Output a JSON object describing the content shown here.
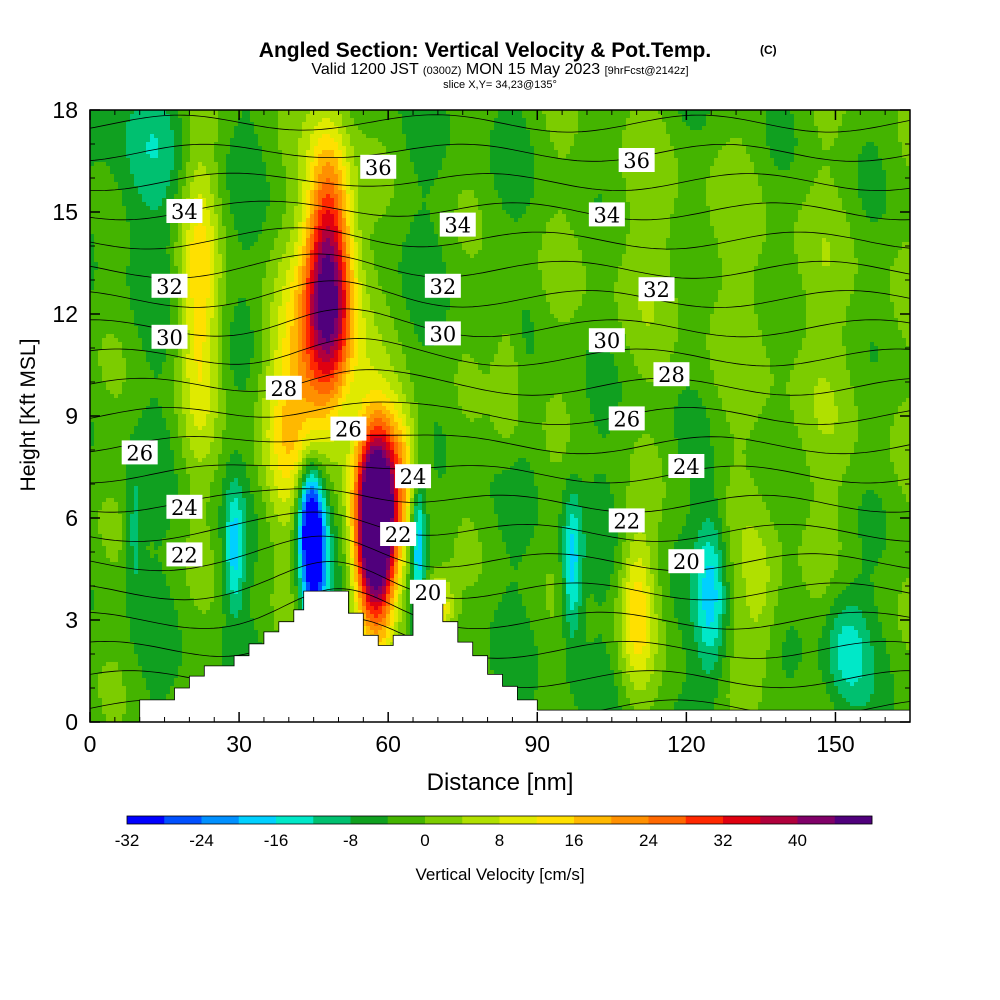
{
  "chart_data": {
    "type": "contour",
    "title": {
      "main": "Angled Section: Vertical Velocity & Pot.Temp.",
      "unit": "(C)",
      "valid_prefix": "Valid 1200 JST",
      "valid_zulu": "(0300Z)",
      "valid_date": "MON 15 May 2023",
      "valid_fcst": "[9hrFcst@2142z]",
      "slice": "slice X,Y= 34,23@135°"
    },
    "xlabel": "Distance [nm]",
    "ylabel": "Height [Kft MSL]",
    "xlim": [
      0,
      165
    ],
    "ylim": [
      0,
      18
    ],
    "x_ticks": [
      "0",
      "30",
      "60",
      "90",
      "120",
      "150"
    ],
    "y_ticks": [
      "0",
      "3",
      "6",
      "9",
      "12",
      "15",
      "18"
    ],
    "x_tick_values": [
      0,
      30,
      60,
      90,
      120,
      150
    ],
    "y_tick_values": [
      0,
      3,
      6,
      9,
      12,
      15,
      18
    ],
    "colorbar": {
      "label": "Vertical Velocity [cm/s]",
      "levels": [
        -32,
        -28,
        -24,
        -20,
        -16,
        -12,
        -8,
        -4,
        0,
        4,
        8,
        12,
        16,
        20,
        24,
        28,
        32,
        36,
        40,
        44
      ],
      "tick_labels": [
        "-32",
        "-24",
        "-16",
        "-8",
        "0",
        "8",
        "16",
        "24",
        "32",
        "40"
      ],
      "colors": [
        "#0000ff",
        "#0050ff",
        "#0090ff",
        "#00d0ff",
        "#00e8c8",
        "#00c070",
        "#10a020",
        "#44b400",
        "#7ccc00",
        "#b0e000",
        "#e0ea00",
        "#ffe000",
        "#ffb800",
        "#ff9000",
        "#ff6800",
        "#ff2800",
        "#e00010",
        "#b0003c",
        "#800068",
        "#50007c"
      ]
    },
    "theta_contour_labels": [
      {
        "text": "36",
        "x": 58,
        "y": 16.3
      },
      {
        "text": "36",
        "x": 110,
        "y": 16.5
      },
      {
        "text": "34",
        "x": 19,
        "y": 15.0
      },
      {
        "text": "34",
        "x": 74,
        "y": 14.6
      },
      {
        "text": "34",
        "x": 104,
        "y": 14.9
      },
      {
        "text": "32",
        "x": 16,
        "y": 12.8
      },
      {
        "text": "32",
        "x": 71,
        "y": 12.8
      },
      {
        "text": "32",
        "x": 114,
        "y": 12.7
      },
      {
        "text": "30",
        "x": 16,
        "y": 11.3
      },
      {
        "text": "30",
        "x": 71,
        "y": 11.4
      },
      {
        "text": "30",
        "x": 104,
        "y": 11.2
      },
      {
        "text": "28",
        "x": 39,
        "y": 9.8
      },
      {
        "text": "28",
        "x": 117,
        "y": 10.2
      },
      {
        "text": "26",
        "x": 52,
        "y": 8.6
      },
      {
        "text": "26",
        "x": 10,
        "y": 7.9
      },
      {
        "text": "26",
        "x": 108,
        "y": 8.9
      },
      {
        "text": "24",
        "x": 65,
        "y": 7.2
      },
      {
        "text": "24",
        "x": 19,
        "y": 6.3
      },
      {
        "text": "24",
        "x": 120,
        "y": 7.5
      },
      {
        "text": "22",
        "x": 62,
        "y": 5.5
      },
      {
        "text": "22",
        "x": 19,
        "y": 4.9
      },
      {
        "text": "22",
        "x": 108,
        "y": 5.9
      },
      {
        "text": "20",
        "x": 68,
        "y": 3.8
      },
      {
        "text": "20",
        "x": 120,
        "y": 4.7
      }
    ],
    "terrain_profile": [
      [
        0,
        0
      ],
      [
        10,
        0
      ],
      [
        10,
        0.65
      ],
      [
        17,
        0.65
      ],
      [
        17,
        1.0
      ],
      [
        20,
        1.0
      ],
      [
        20,
        1.35
      ],
      [
        23,
        1.35
      ],
      [
        23,
        1.65
      ],
      [
        29,
        1.65
      ],
      [
        29,
        1.95
      ],
      [
        32,
        1.95
      ],
      [
        32,
        2.3
      ],
      [
        35,
        2.3
      ],
      [
        35,
        2.65
      ],
      [
        38,
        2.65
      ],
      [
        38,
        2.95
      ],
      [
        41,
        2.95
      ],
      [
        41,
        3.3
      ],
      [
        43,
        3.3
      ],
      [
        43,
        3.85
      ],
      [
        52,
        3.85
      ],
      [
        52,
        3.2
      ],
      [
        55,
        3.2
      ],
      [
        55,
        2.55
      ],
      [
        58,
        2.55
      ],
      [
        58,
        2.25
      ],
      [
        61,
        2.25
      ],
      [
        61,
        2.55
      ],
      [
        65,
        2.55
      ],
      [
        65,
        3.55
      ],
      [
        71,
        3.55
      ],
      [
        71,
        2.95
      ],
      [
        74,
        2.95
      ],
      [
        74,
        2.35
      ],
      [
        77,
        2.35
      ],
      [
        77,
        1.95
      ],
      [
        80,
        1.95
      ],
      [
        80,
        1.4
      ],
      [
        83,
        1.4
      ],
      [
        83,
        1.05
      ],
      [
        86,
        1.05
      ],
      [
        86,
        0.65
      ],
      [
        90,
        0.65
      ],
      [
        90,
        0.35
      ],
      [
        165,
        0.35
      ],
      [
        165,
        0
      ]
    ],
    "velocity_centers": [
      {
        "x": 48,
        "y": 13.8,
        "a": 4.5,
        "b": 3.8,
        "v": 36
      },
      {
        "x": 48,
        "y": 11.5,
        "a": 6,
        "b": 3,
        "v": 24
      },
      {
        "x": 57,
        "y": 6.2,
        "a": 3.8,
        "b": 2.8,
        "v": 44
      },
      {
        "x": 58,
        "y": 5.0,
        "a": 4.5,
        "b": 2.5,
        "v": 30
      },
      {
        "x": 62,
        "y": 7.6,
        "a": 5,
        "b": 2.0,
        "v": 20
      },
      {
        "x": 45,
        "y": 4.8,
        "a": 2.6,
        "b": 2.2,
        "v": -32
      },
      {
        "x": 44,
        "y": 6.2,
        "a": 2.5,
        "b": 1.6,
        "v": -20
      },
      {
        "x": 66,
        "y": 5.4,
        "a": 1.5,
        "b": 2.0,
        "v": -18
      },
      {
        "x": 70,
        "y": 3.3,
        "a": 3,
        "b": 1.0,
        "v": 20
      },
      {
        "x": 22,
        "y": 12.5,
        "a": 4,
        "b": 4.5,
        "v": 16
      },
      {
        "x": 40,
        "y": 9.0,
        "a": 6,
        "b": 3.5,
        "v": 16
      },
      {
        "x": 29,
        "y": 5.0,
        "a": 2.0,
        "b": 1.8,
        "v": -14
      },
      {
        "x": 9,
        "y": 5.5,
        "a": 1.6,
        "b": 1.8,
        "v": -8
      },
      {
        "x": 97,
        "y": 4.5,
        "a": 2.0,
        "b": 2.2,
        "v": -16
      },
      {
        "x": 110,
        "y": 3.3,
        "a": 3.5,
        "b": 2.3,
        "v": 16
      },
      {
        "x": 125,
        "y": 3.8,
        "a": 3.0,
        "b": 2.5,
        "v": -14
      },
      {
        "x": 135,
        "y": 3.6,
        "a": 4.5,
        "b": 2.2,
        "v": 8
      },
      {
        "x": 152,
        "y": 2.2,
        "a": 4.5,
        "b": 1.8,
        "v": -12
      },
      {
        "x": 146,
        "y": 10.5,
        "a": 20,
        "b": 7,
        "v": 4
      },
      {
        "x": 112,
        "y": 14.0,
        "a": 18,
        "b": 4,
        "v": 4
      },
      {
        "x": 84,
        "y": 10.2,
        "a": 3,
        "b": 2.5,
        "v": 8
      },
      {
        "x": 10,
        "y": 16.5,
        "a": 10,
        "b": 2.5,
        "v": -6
      }
    ]
  }
}
